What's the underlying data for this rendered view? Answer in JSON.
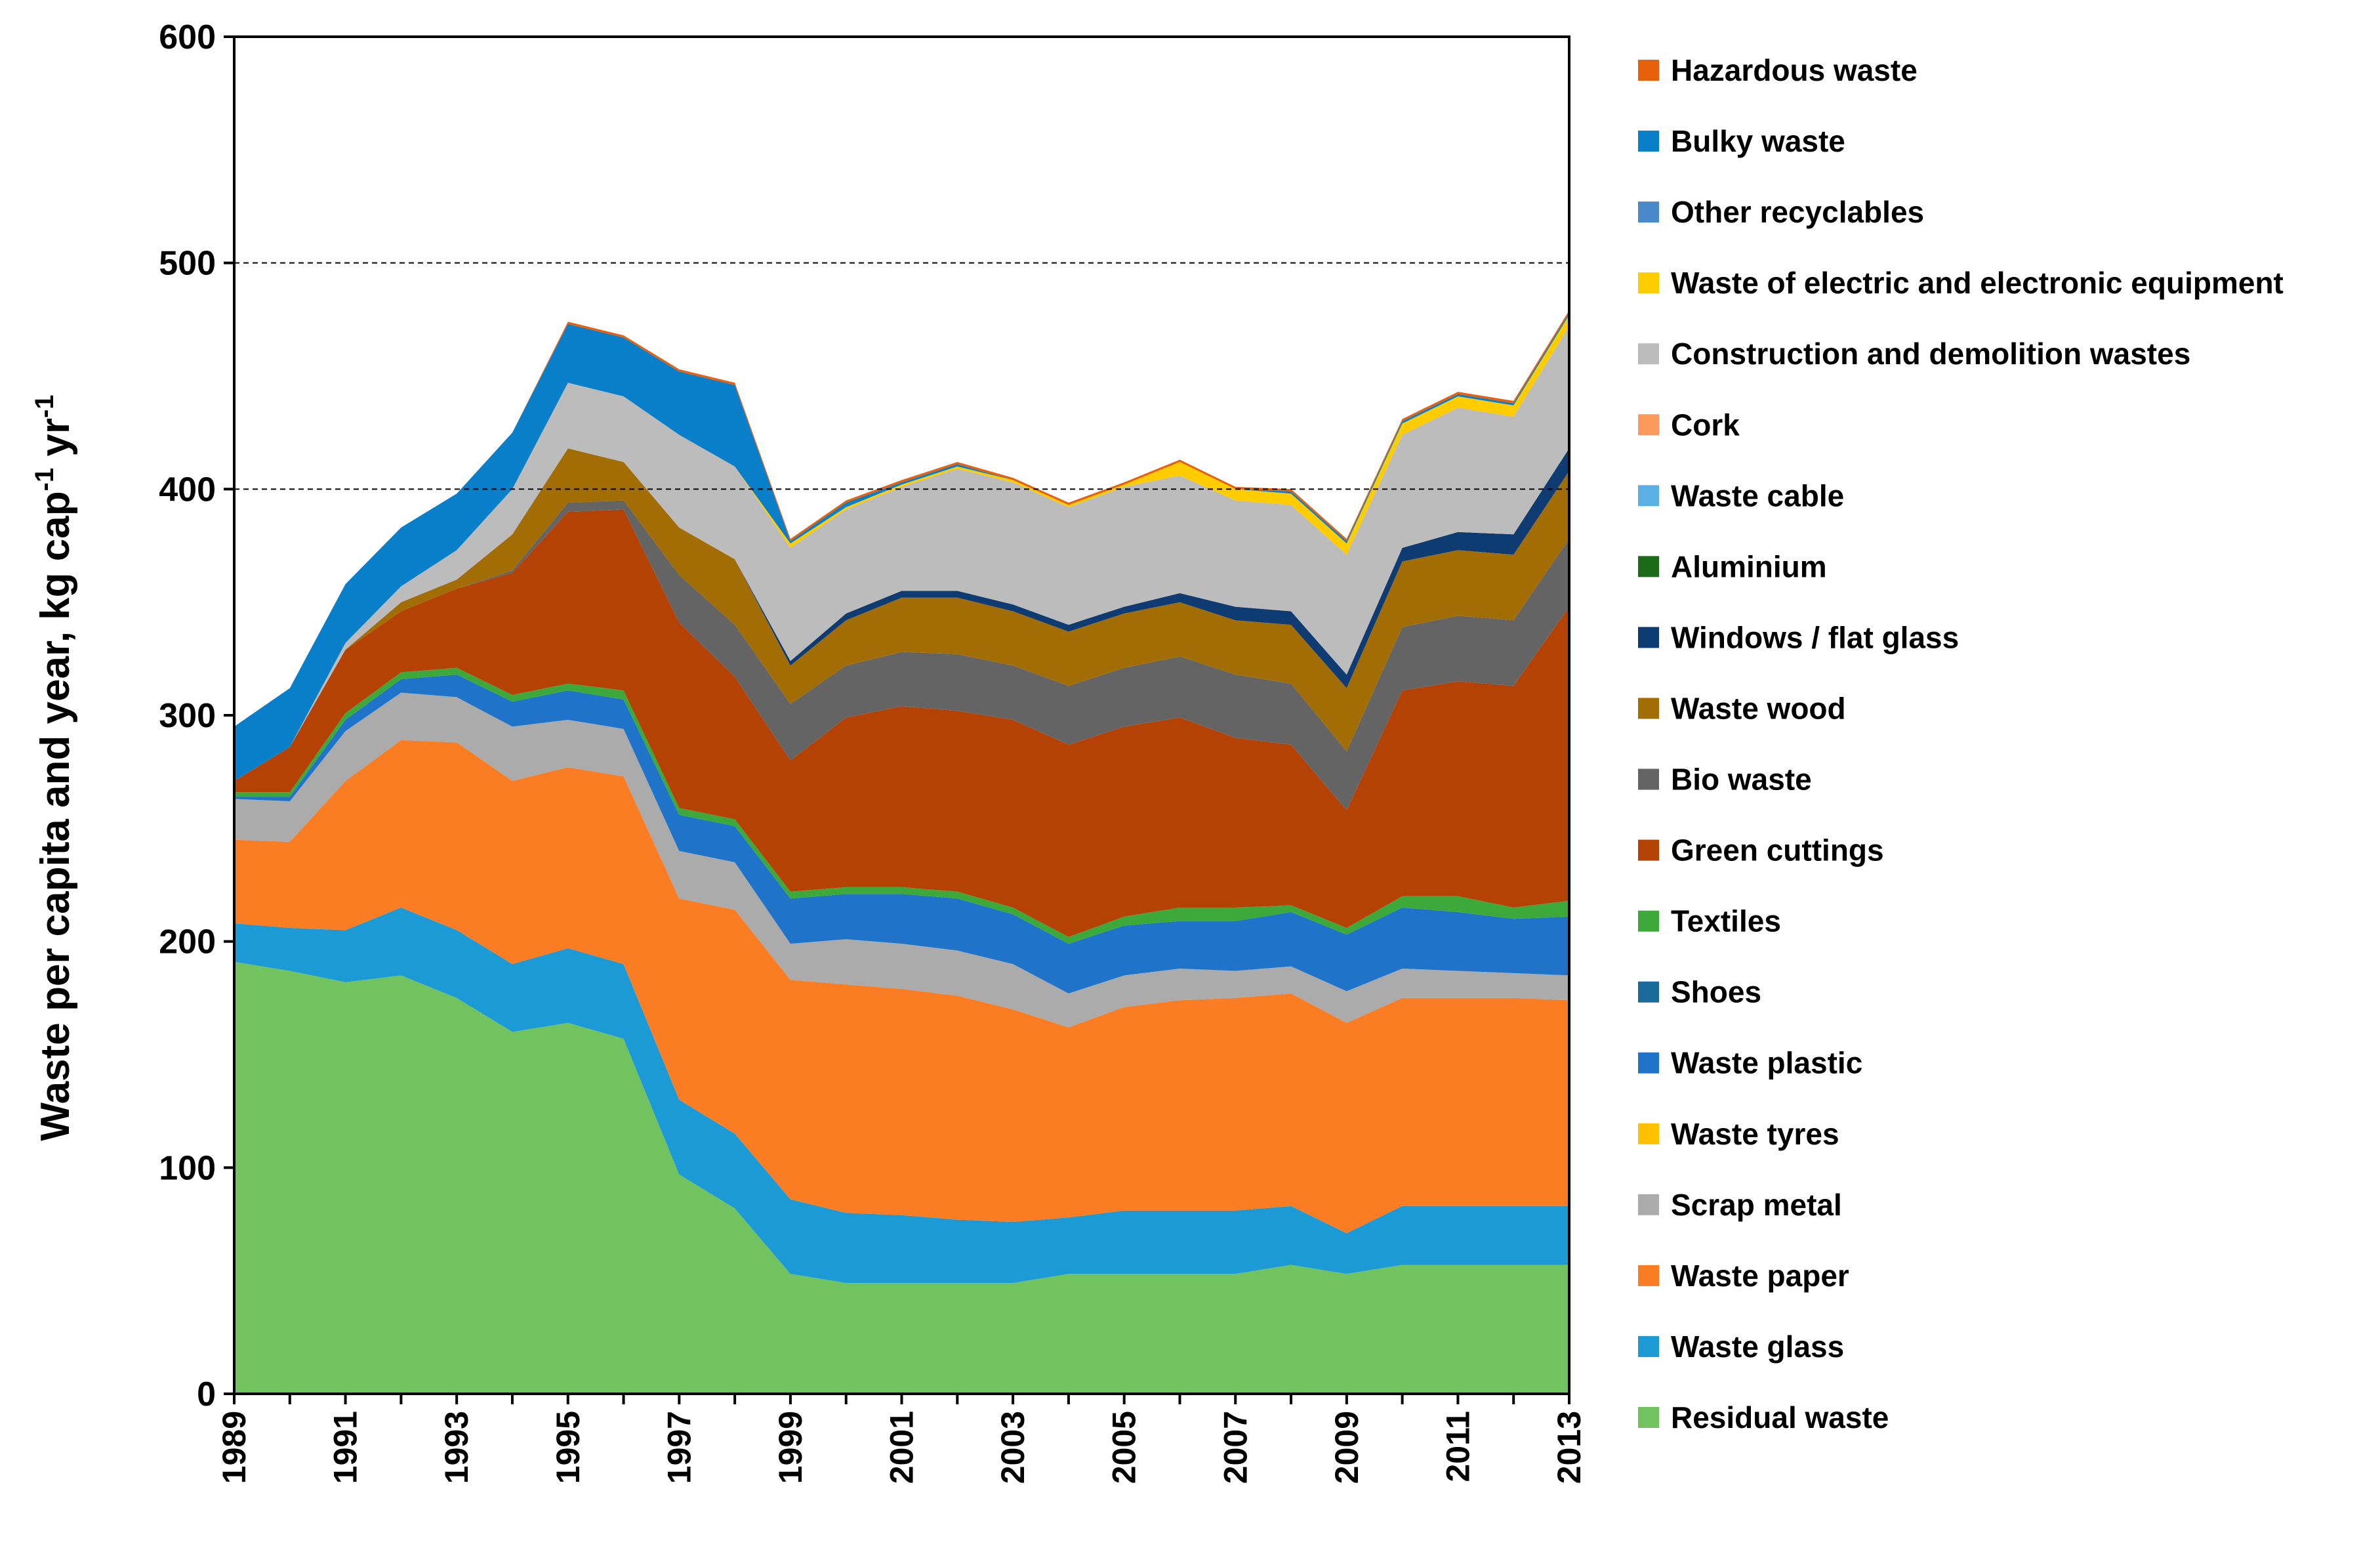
{
  "chart_data": {
    "type": "area",
    "stacked": true,
    "title": "",
    "xlabel": "",
    "ylabel_parts": [
      "Waste per capita and year, kg cap",
      "-1",
      " yr",
      "-1"
    ],
    "x": [
      1989,
      1990,
      1991,
      1992,
      1993,
      1994,
      1995,
      1996,
      1997,
      1998,
      1999,
      2000,
      2001,
      2002,
      2003,
      2004,
      2005,
      2006,
      2007,
      2008,
      2009,
      2010,
      2011,
      2012,
      2013
    ],
    "x_tick_labels": [
      "1989",
      "1991",
      "1993",
      "1995",
      "1997",
      "1999",
      "2001",
      "2003",
      "2005",
      "2007",
      "2009",
      "2011",
      "2013"
    ],
    "ylim": [
      0,
      600
    ],
    "y_ticks": [
      "0",
      "100",
      "200",
      "300",
      "400",
      "500",
      "600"
    ],
    "gridlines_dashed": [
      400,
      500
    ],
    "legend_position": "right",
    "series": [
      {
        "name": "Residual waste",
        "color": "#70c35e",
        "values": [
          191,
          187,
          182,
          185,
          175,
          160,
          164,
          157,
          97,
          82,
          53,
          49,
          49,
          49,
          49,
          53,
          53,
          53,
          53,
          57,
          53,
          57,
          57,
          57,
          57
        ]
      },
      {
        "name": "Waste glass",
        "color": "#1b9ad6",
        "values": [
          17,
          19,
          23,
          30,
          30,
          30,
          33,
          33,
          33,
          33,
          33,
          31,
          30,
          28,
          27,
          25,
          28,
          28,
          28,
          26,
          18,
          26,
          26,
          26,
          26
        ]
      },
      {
        "name": "Waste paper",
        "color": "#fa7d24",
        "values": [
          37,
          38,
          66,
          74,
          83,
          81,
          80,
          83,
          89,
          99,
          97,
          101,
          100,
          99,
          94,
          84,
          90,
          93,
          94,
          94,
          93,
          92,
          92,
          92,
          91
        ]
      },
      {
        "name": "Scrap metal",
        "color": "#ababab",
        "values": [
          18,
          18,
          22,
          21,
          20,
          24,
          21,
          21,
          21,
          21,
          16,
          20,
          20,
          20,
          20,
          15,
          14,
          14,
          12,
          12,
          14,
          13,
          12,
          11,
          11
        ]
      },
      {
        "name": "Waste tyres",
        "color": "#ffc000",
        "values": [
          0,
          0,
          0,
          0,
          0,
          0,
          0,
          0,
          0,
          0,
          0,
          0,
          0,
          0,
          0,
          0,
          0,
          0,
          0,
          0,
          0,
          0,
          0,
          0,
          0
        ]
      },
      {
        "name": "Waste plastic",
        "color": "#1f73c8",
        "values": [
          1,
          2,
          5,
          6,
          10,
          11,
          13,
          13,
          16,
          16,
          20,
          20,
          22,
          23,
          22,
          22,
          22,
          21,
          22,
          24,
          25,
          27,
          26,
          24,
          26
        ]
      },
      {
        "name": "Shoes",
        "color": "#1a6a9c",
        "values": [
          0,
          0,
          0,
          0,
          0,
          0,
          0,
          0,
          0,
          0,
          0,
          0,
          0,
          0,
          0,
          0,
          0,
          0,
          0,
          0,
          0,
          0,
          0,
          0,
          0
        ]
      },
      {
        "name": "Textiles",
        "color": "#3ea93b",
        "values": [
          2,
          2,
          3,
          3,
          3,
          3,
          3,
          4,
          3,
          3,
          3,
          3,
          3,
          3,
          3,
          3,
          4,
          6,
          6,
          3,
          3,
          5,
          7,
          5,
          7
        ]
      },
      {
        "name": "Green cuttings",
        "color": "#b44205",
        "values": [
          5,
          20,
          28,
          27,
          35,
          54,
          76,
          80,
          82,
          63,
          58,
          75,
          80,
          80,
          83,
          85,
          84,
          84,
          75,
          71,
          52,
          91,
          95,
          98,
          130
        ]
      },
      {
        "name": "Bio waste",
        "color": "#646464",
        "values": [
          0,
          0,
          0,
          0,
          0,
          1,
          4,
          4,
          21,
          23,
          25,
          23,
          24,
          25,
          24,
          26,
          26,
          27,
          28,
          27,
          26,
          28,
          29,
          29,
          30
        ]
      },
      {
        "name": "Waste wood",
        "color": "#a16d04",
        "values": [
          0,
          0,
          0,
          4,
          4,
          16,
          24,
          17,
          21,
          29,
          17,
          20,
          24,
          25,
          24,
          24,
          24,
          24,
          24,
          26,
          28,
          29,
          29,
          29,
          30
        ]
      },
      {
        "name": "Windows / flat glass",
        "color": "#0e3b72",
        "values": [
          0,
          0,
          0,
          0,
          0,
          0,
          0,
          0,
          0,
          0,
          2,
          3,
          3,
          3,
          3,
          3,
          3,
          4,
          6,
          6,
          6,
          6,
          8,
          9,
          10
        ]
      },
      {
        "name": "Aluminium",
        "color": "#1b6b1a",
        "values": [
          0,
          0,
          0,
          0,
          0,
          0,
          0,
          0,
          0,
          0,
          0,
          0,
          0,
          0,
          0,
          0,
          0,
          0,
          0,
          0,
          0,
          0,
          0,
          0,
          0
        ]
      },
      {
        "name": "Waste cable",
        "color": "#5ab0e4",
        "values": [
          0,
          0,
          0,
          0,
          0,
          0,
          0,
          0,
          0,
          0,
          0,
          0,
          0,
          0,
          0,
          0,
          0,
          0,
          0,
          0,
          0,
          0,
          0,
          0,
          0
        ]
      },
      {
        "name": "Cork",
        "color": "#fb9a5c",
        "values": [
          0,
          0,
          0,
          0,
          0,
          0,
          0,
          0,
          0,
          0,
          0,
          0,
          0,
          0,
          0,
          0,
          0,
          0,
          0,
          0,
          0,
          0,
          0,
          0,
          0
        ]
      },
      {
        "name": "Construction and demolition wastes",
        "color": "#bcbcbc",
        "values": [
          0,
          0,
          3,
          7,
          13,
          20,
          29,
          29,
          41,
          41,
          50,
          46,
          46,
          54,
          54,
          52,
          53,
          52,
          47,
          47,
          53,
          50,
          55,
          52,
          54
        ]
      },
      {
        "name": "Waste of electric and electronic equipment",
        "color": "#ffcc00",
        "values": [
          0,
          0,
          0,
          0,
          0,
          0,
          0,
          0,
          0,
          0,
          2,
          1,
          1,
          1,
          1,
          1,
          1,
          6,
          5,
          5,
          5,
          5,
          5,
          5,
          5
        ]
      },
      {
        "name": "Other recyclables",
        "color": "#4a88cc",
        "values": [
          0,
          0,
          0,
          0,
          0,
          0,
          0,
          0,
          0,
          0,
          0,
          0,
          0,
          0,
          0,
          0,
          0,
          0,
          0,
          0,
          0,
          0,
          0,
          0,
          0
        ]
      },
      {
        "name": "Bulky waste",
        "color": "#0a7fc9",
        "values": [
          24,
          26,
          26,
          26,
          25,
          25,
          26,
          26,
          28,
          36,
          1,
          2,
          1,
          1,
          0,
          0,
          0,
          0,
          0,
          1,
          1,
          1,
          1,
          1,
          1
        ]
      },
      {
        "name": "Hazardous waste",
        "color": "#e85f0c",
        "values": [
          0,
          0,
          0,
          0,
          0,
          0,
          1,
          1,
          1,
          1,
          1,
          1,
          1,
          1,
          1,
          1,
          1,
          1,
          1,
          1,
          1,
          1,
          1,
          1,
          1
        ]
      }
    ]
  }
}
